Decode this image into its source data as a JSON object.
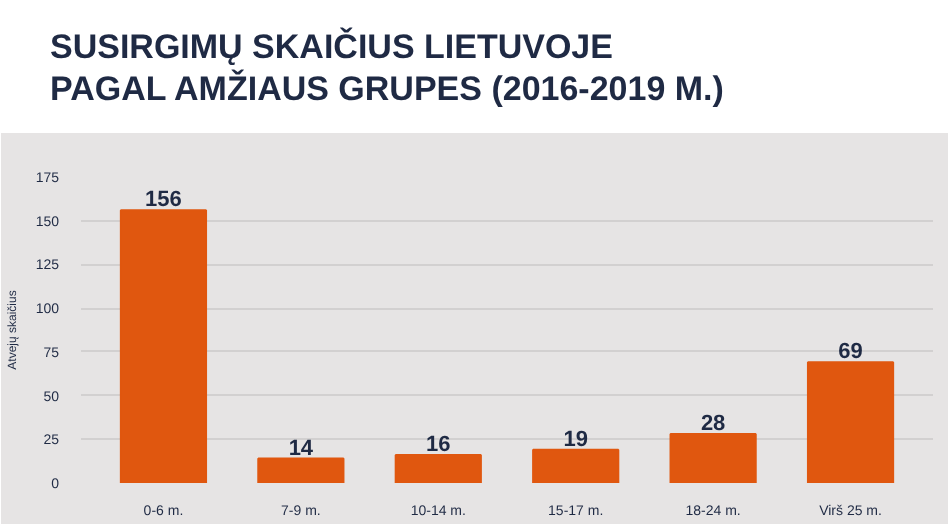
{
  "chart_data": {
    "type": "bar",
    "title": "SUSIRGIMŲ SKAIČIUS LIETUVOJE\nPAGAL AMŽIAUS GRUPES (2016-2019 M.)",
    "ylabel": "Atvejų skaičius",
    "categories": [
      "0-6 m.",
      "7-9 m.",
      "10-14 m.",
      "15-17 m.",
      "18-24 m.",
      "Virš 25 m."
    ],
    "values": [
      156,
      14,
      16,
      19,
      28,
      69
    ],
    "color": "#e0570f",
    "ylim": [
      0,
      175
    ],
    "yticks": [
      0,
      25,
      50,
      75,
      100,
      125,
      150,
      175
    ],
    "grid": "y",
    "data_labels": true
  }
}
